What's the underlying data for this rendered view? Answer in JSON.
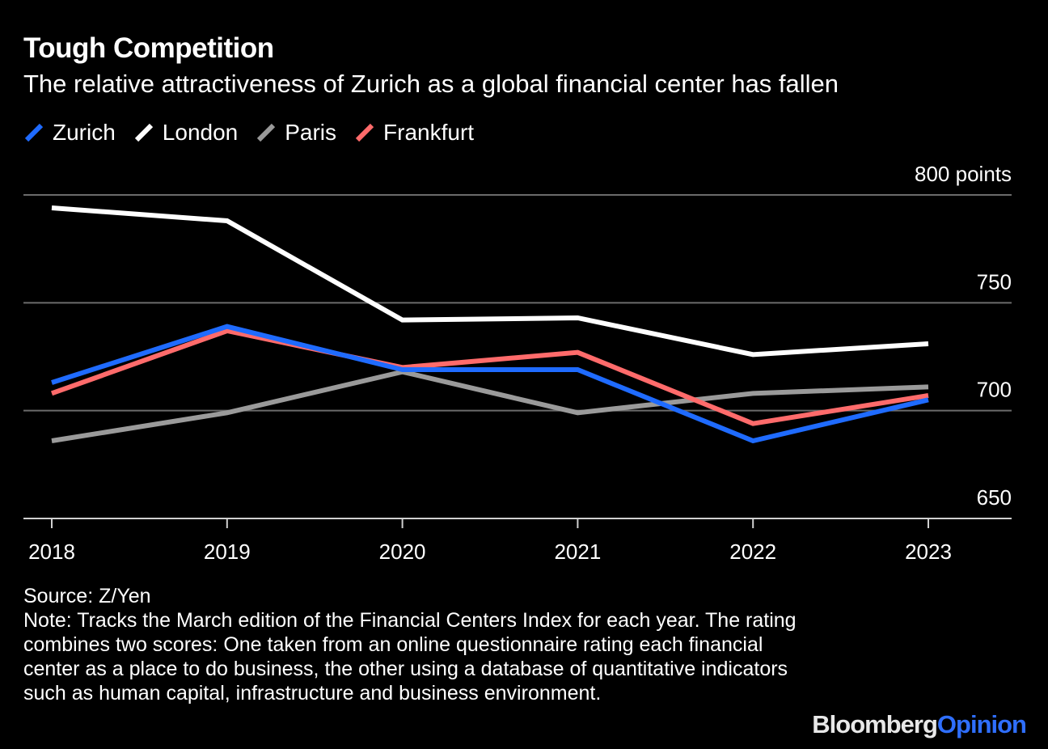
{
  "chart_data": {
    "type": "line",
    "title": "Tough Competition",
    "subtitle": "The relative attractiveness of Zurich as a global financial center has fallen",
    "categories": [
      "2018",
      "2019",
      "2020",
      "2021",
      "2022",
      "2023"
    ],
    "series": [
      {
        "name": "Zurich",
        "color": "#1f6bff",
        "values": [
          713,
          739,
          719,
          719,
          686,
          705
        ]
      },
      {
        "name": "London",
        "color": "#ffffff",
        "values": [
          794,
          788,
          742,
          743,
          726,
          731
        ]
      },
      {
        "name": "Paris",
        "color": "#9a9a9a",
        "values": [
          686,
          699,
          718,
          699,
          708,
          711
        ]
      },
      {
        "name": "Frankfurt",
        "color": "#ff6b6b",
        "values": [
          708,
          737,
          720,
          727,
          694,
          707
        ]
      }
    ],
    "ylim": [
      650,
      800
    ],
    "yticks": [
      650,
      700,
      750,
      800
    ],
    "ytick_labels": [
      "650",
      "700",
      "750",
      "800 points"
    ],
    "ylabel": "",
    "xlabel": "",
    "grid": true,
    "legend": "top-left"
  },
  "footer": {
    "source": "Source: Z/Yen",
    "note": "Note: Tracks the March edition of the Financial Centers Index for each year. The rating combines two scores: One taken from an online questionnaire rating each financial center as a place to do business, the other using a database of quantitative indicators such as human capital, infrastructure and business environment."
  },
  "brand": {
    "bloomberg": "Bloomberg",
    "opinion": "Opinion"
  }
}
